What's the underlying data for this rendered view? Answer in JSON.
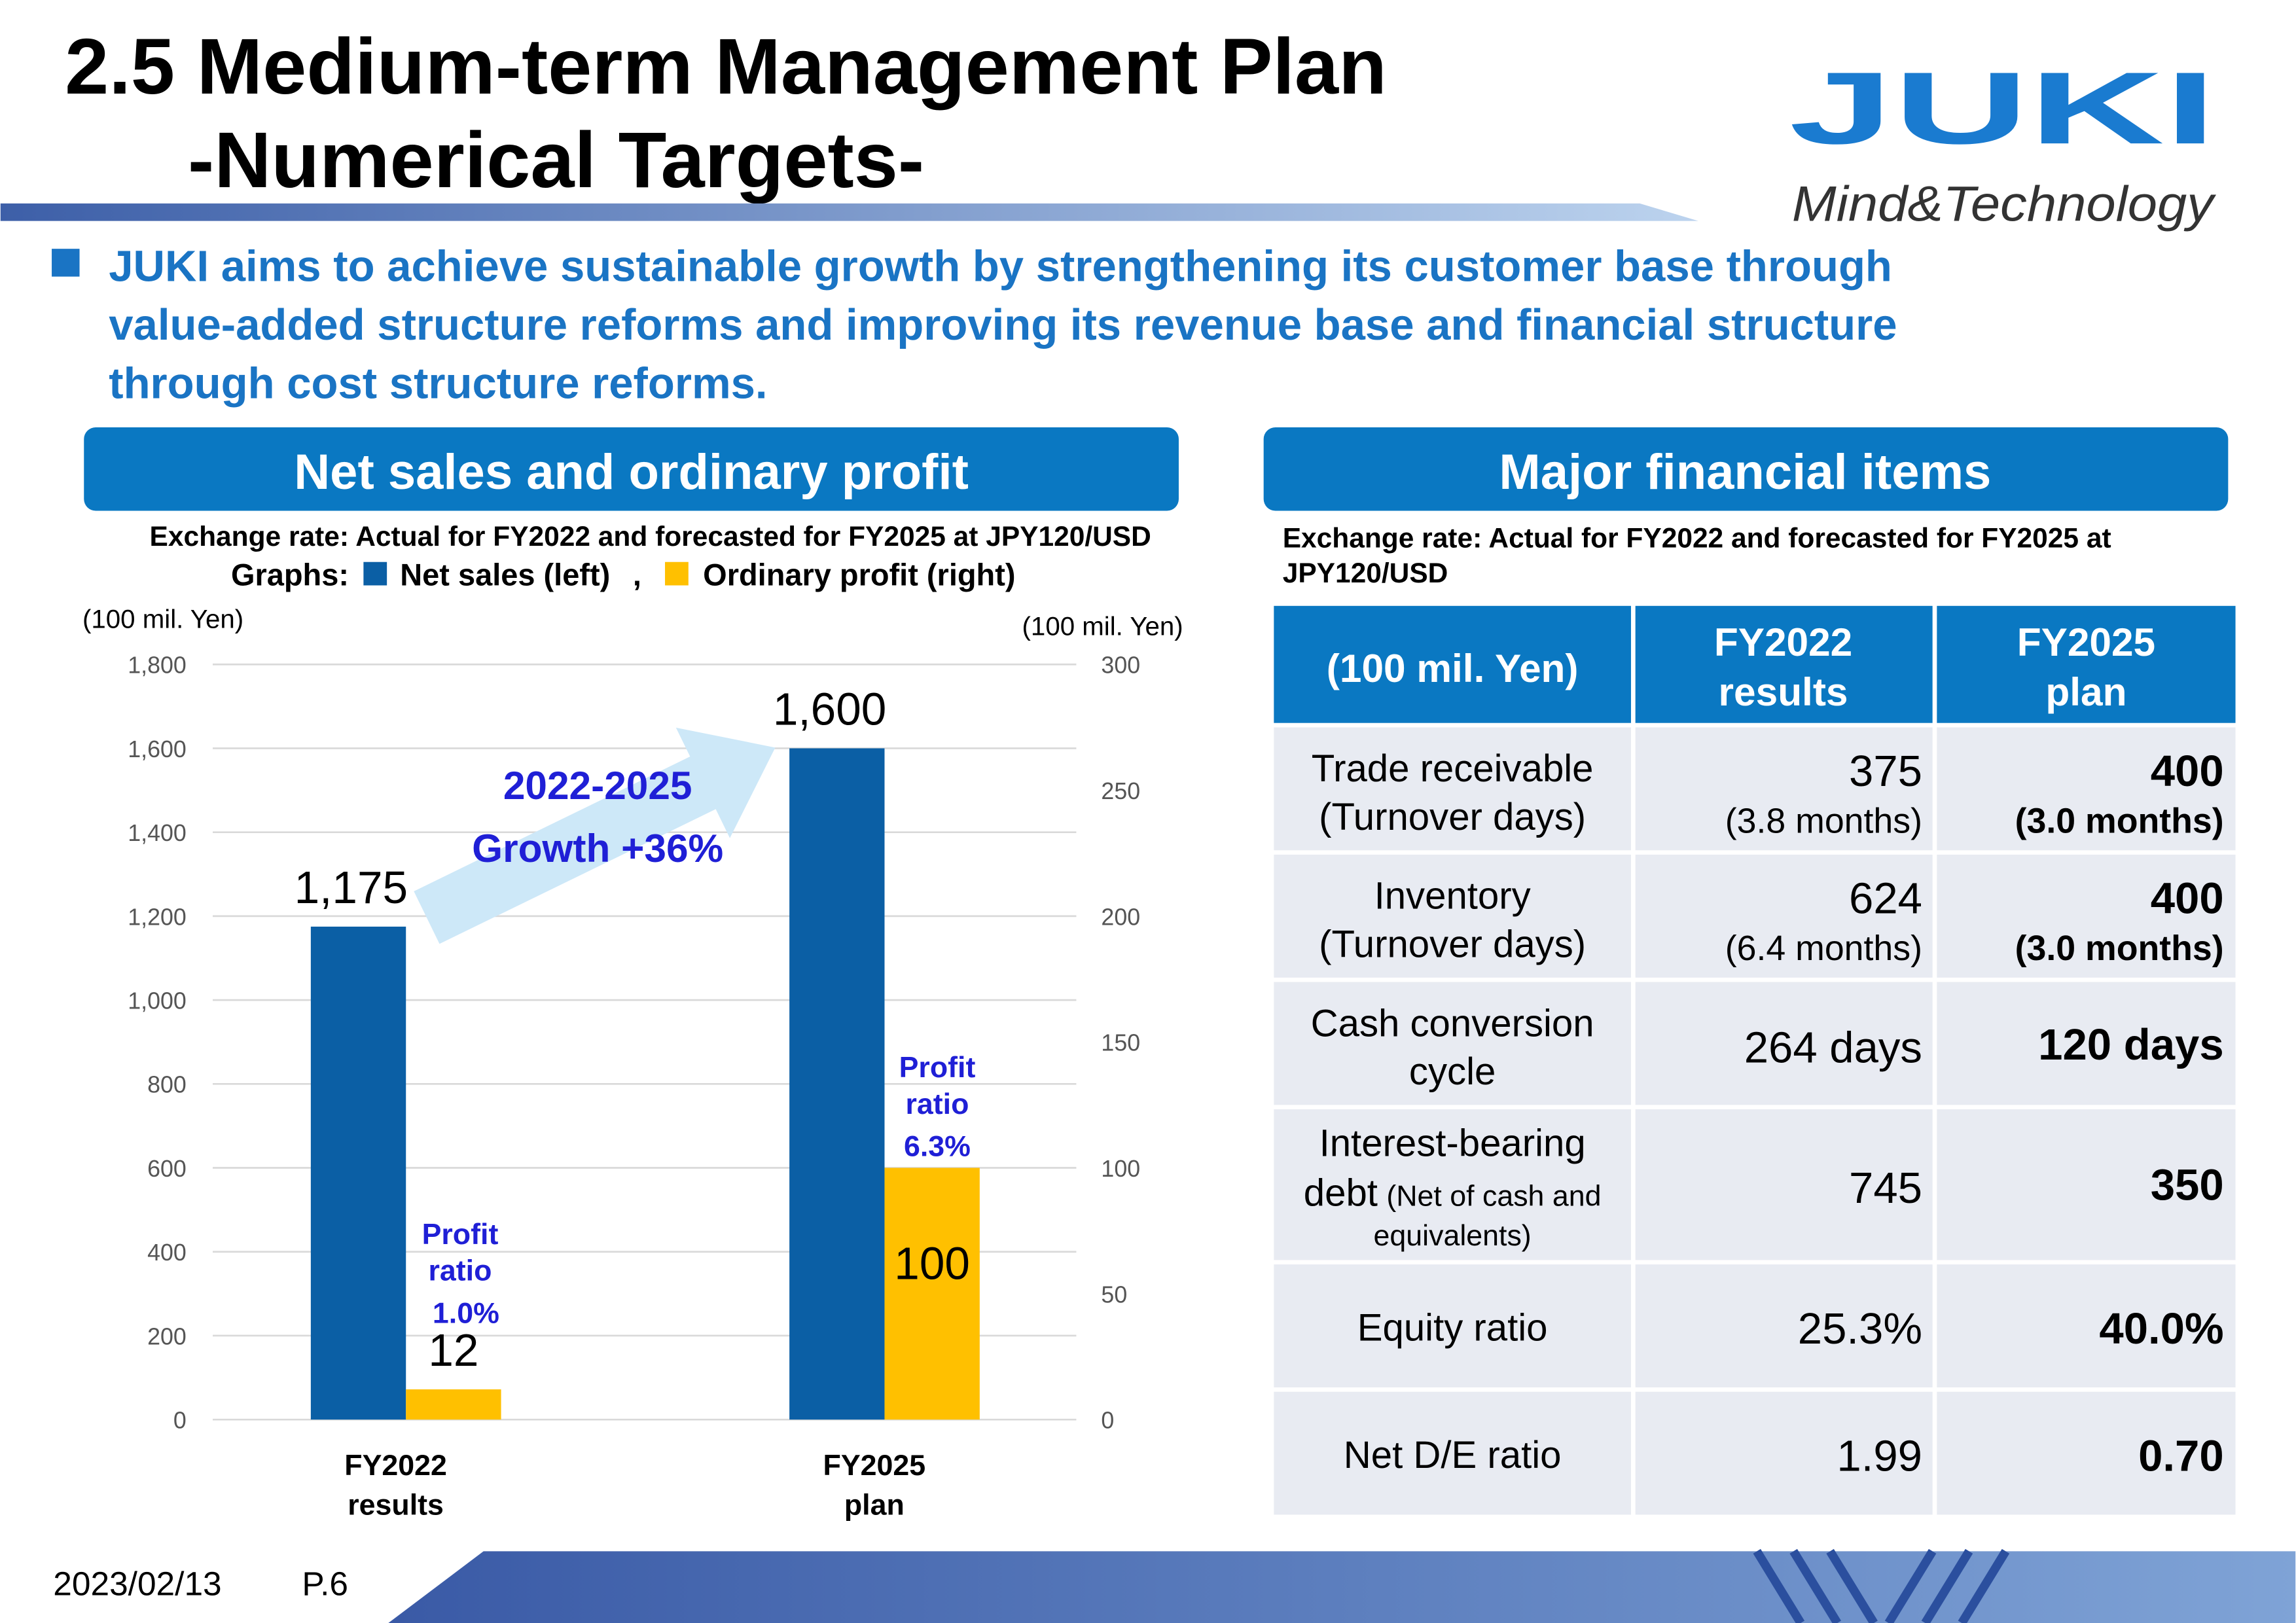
{
  "header": {
    "title_line1": "2.5 Medium-term Management Plan",
    "title_line2": "-Numerical Targets-",
    "logo": "JUKI",
    "tagline": "Mind&Technology"
  },
  "bullet": [
    "JUKI aims to achieve sustainable growth by strengthening its customer base through",
    "value-added structure reforms and improving its revenue base and financial structure",
    "through cost structure reforms."
  ],
  "chart_data": {
    "type": "bar",
    "title": "Net sales and ordinary profit",
    "subtitle": "Exchange rate: Actual for FY2022 and forecasted for FY2025 at JPY120/USD",
    "legend_prefix": "Graphs:",
    "legend_separator": ",",
    "ylabel": "(100 mil. Yen)",
    "y2label": "(100 mil. Yen)",
    "categories": [
      [
        "FY2022",
        "results"
      ],
      [
        "FY2025",
        "plan"
      ]
    ],
    "series": [
      {
        "name": "Net sales (left)",
        "color": "#0b5fa5",
        "values": [
          1175,
          1600
        ],
        "value_labels": [
          "1,175",
          "1,600"
        ]
      },
      {
        "name": "Ordinary profit (right)",
        "color": "#ffc000",
        "axis": "y2",
        "values": [
          12,
          100
        ]
      }
    ],
    "ylim": [
      0,
      1800
    ],
    "yticks": [
      0,
      200,
      400,
      600,
      800,
      {
        "value": 1000,
        "label": "1,000"
      },
      {
        "value": 1200,
        "label": "1,200"
      },
      {
        "value": 1400,
        "label": "1,400"
      },
      {
        "value": 1600,
        "label": "1,600"
      },
      {
        "value": 1800,
        "label": "1,800"
      }
    ],
    "y2lim": [
      0,
      300
    ],
    "y2ticks": [
      0,
      50,
      100,
      150,
      200,
      250,
      300
    ],
    "grid": true,
    "annotations": {
      "growth": [
        "2022-2025",
        "Growth +36%"
      ],
      "profit_ratio": [
        [
          "Profit",
          "ratio",
          "1.0%"
        ],
        [
          "Profit",
          "ratio",
          "6.3%"
        ]
      ]
    }
  },
  "table": {
    "title": "Major financial items",
    "note": [
      "Exchange rate: Actual for FY2022 and forecasted for FY2025 at",
      "JPY120/USD"
    ],
    "header": [
      "(100 mil. Yen)",
      [
        "FY2022",
        "results"
      ],
      [
        "FY2025",
        "plan"
      ]
    ],
    "rows": [
      {
        "label": [
          "Trade receivable",
          "(Turnover days)"
        ],
        "fy2022": [
          "375",
          "(3.8 months)"
        ],
        "fy2025": [
          "400",
          "(3.0 months)"
        ]
      },
      {
        "label": [
          "Inventory",
          "(Turnover days)"
        ],
        "fy2022": [
          "624",
          "(6.4 months)"
        ],
        "fy2025": [
          "400",
          "(3.0 months)"
        ]
      },
      {
        "label": [
          "Cash conversion",
          "cycle"
        ],
        "fy2022": [
          "264 days"
        ],
        "fy2025": [
          "120 days"
        ]
      },
      {
        "label": [
          "Interest-bearing",
          "debt",
          "(Net of cash and",
          "equivalents)"
        ],
        "fy2022": [
          "745"
        ],
        "fy2025": [
          "350"
        ]
      },
      {
        "label": [
          "Equity ratio"
        ],
        "fy2022": [
          "25.3%"
        ],
        "fy2025": [
          "40.0%"
        ]
      },
      {
        "label": [
          "Net D/E ratio"
        ],
        "fy2022": [
          "1.99"
        ],
        "fy2025": [
          "0.70"
        ]
      }
    ]
  },
  "footer": {
    "date": "2023/02/13",
    "page": "P.6"
  }
}
